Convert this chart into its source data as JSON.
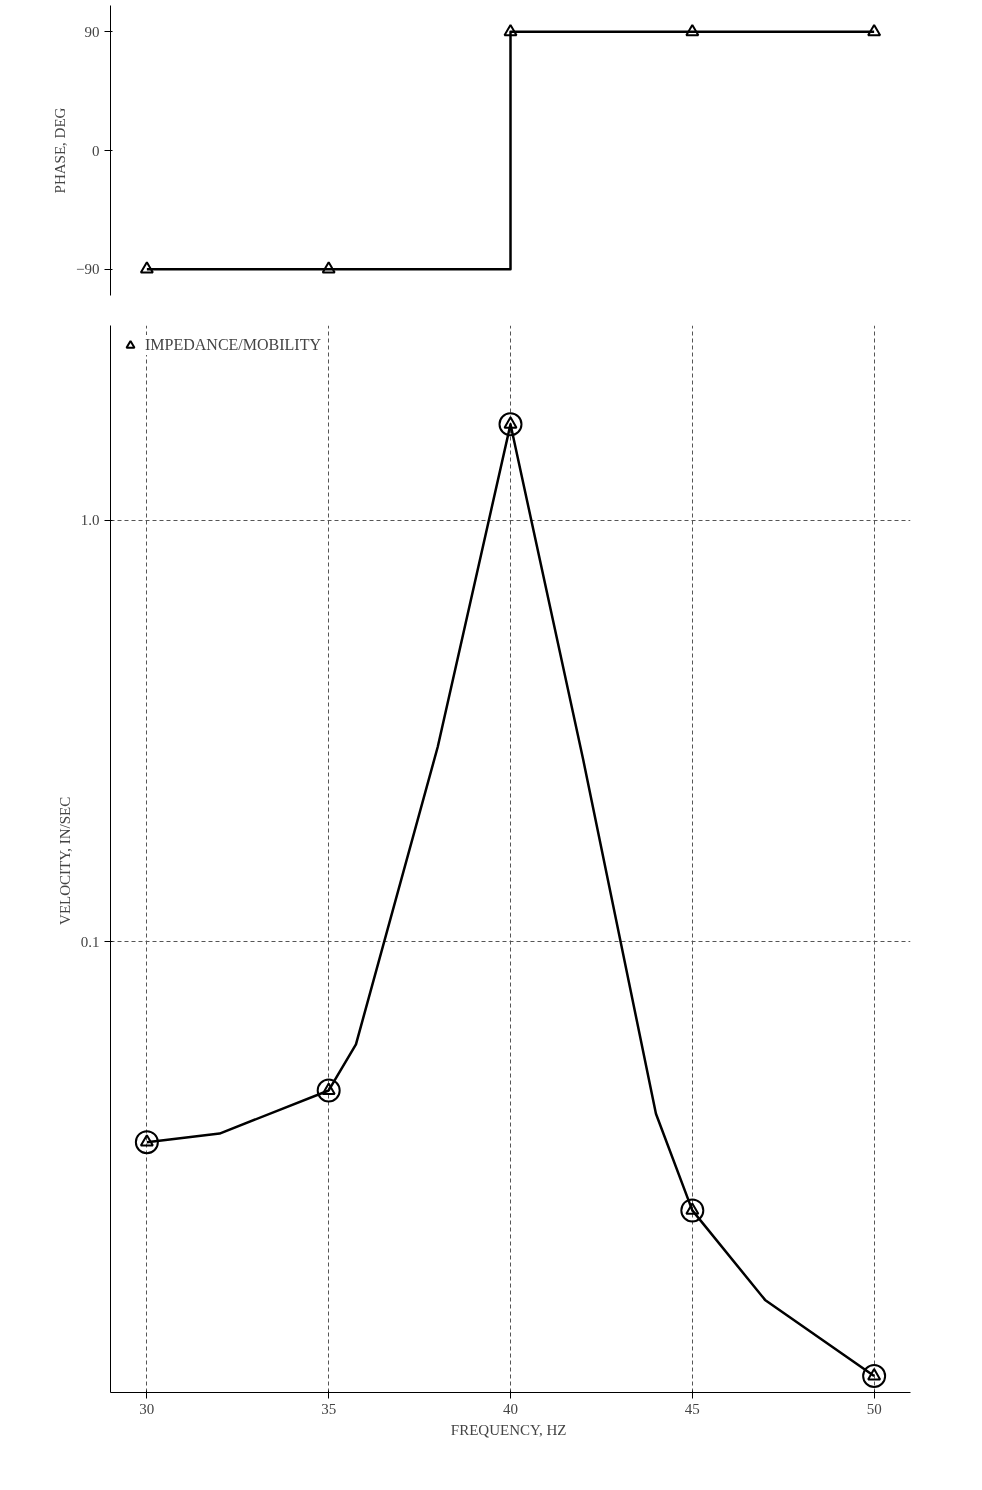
{
  "chart_data": [
    {
      "type": "step",
      "x": [
        30,
        35,
        40,
        45,
        50
      ],
      "ylim": [
        -110,
        110
      ],
      "yticks": [
        90,
        0,
        -90
      ],
      "ylabel": "PHASE, DEG",
      "tick_labels": "y",
      "grid": false,
      "series": [
        {
          "color": "#000000",
          "marker": "triangle",
          "values": [
            -90,
            -90,
            90,
            90,
            90
          ]
        }
      ]
    },
    {
      "type": "line",
      "log": "y",
      "x": [
        30,
        35,
        40,
        45,
        50
      ],
      "xlim": [
        29,
        51
      ],
      "ylim": [
        0.0085,
        2.9
      ],
      "xticks": [
        30,
        35,
        40,
        45,
        50
      ],
      "yticks": [
        {
          "value": 0.1,
          "label": "0.1"
        },
        {
          "value": 1,
          "label": "1.0"
        }
      ],
      "xlabel": "FREQUENCY,  HZ",
      "ylabel": "VELOCITY,  IN/SEC",
      "grid": true,
      "legend": "top left",
      "series": [
        {
          "type": "scatter",
          "marker": "circle",
          "color": "#000000",
          "values": [
            0.0334,
            0.0443,
            1.69,
            0.023,
            0.0093
          ]
        },
        {
          "type": "scatter",
          "marker": "triangle",
          "name": "IMPEDANCE/MOBILITY",
          "color": "#000000",
          "values": [
            0.0334,
            0.0443,
            1.69,
            0.023,
            0.0093
          ]
        },
        {
          "type": "line",
          "color": "#000000",
          "x": [
            30,
            32,
            35,
            35.75,
            38,
            40,
            42,
            44,
            45,
            47,
            50
          ],
          "values": [
            0.0334,
            0.035,
            0.0443,
            0.057,
            0.29,
            1.69,
            0.27,
            0.039,
            0.023,
            0.0141,
            0.0093
          ]
        }
      ]
    }
  ]
}
